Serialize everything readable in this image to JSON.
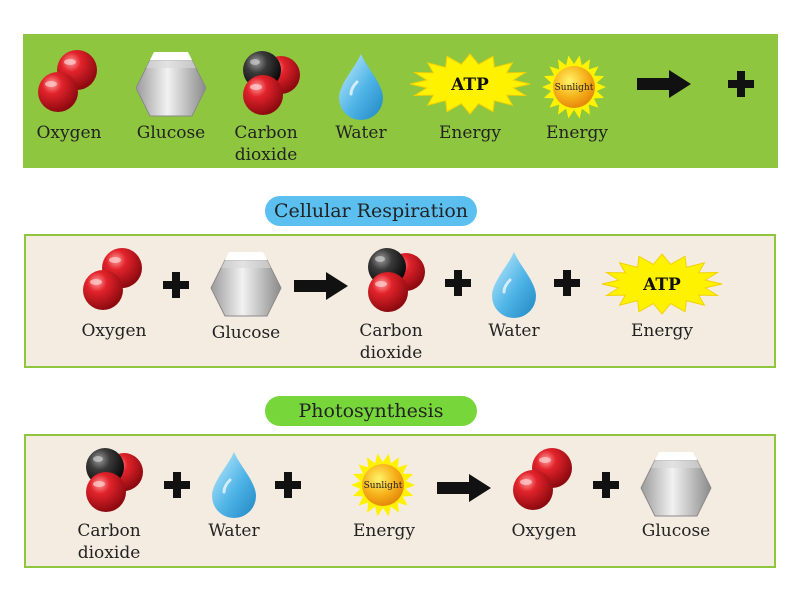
{
  "legend": {
    "items": [
      {
        "name": "oxygen",
        "label": "Oxygen"
      },
      {
        "name": "glucose",
        "label": "Glucose"
      },
      {
        "name": "co2",
        "label_line1": "Carbon",
        "label_line2": "dioxide"
      },
      {
        "name": "water",
        "label": "Water"
      },
      {
        "name": "atp",
        "badge": "ATP",
        "label": "Energy"
      },
      {
        "name": "sun",
        "badge": "Sunlight",
        "label": "Energy"
      }
    ]
  },
  "respiration": {
    "title": "Cellular Respiration",
    "oxygen": "Oxygen",
    "glucose": "Glucose",
    "co2_line1": "Carbon",
    "co2_line2": "dioxide",
    "water": "Water",
    "atp_badge": "ATP",
    "energy": "Energy"
  },
  "photosynthesis": {
    "title": "Photosynthesis",
    "co2_line1": "Carbon",
    "co2_line2": "dioxide",
    "water": "Water",
    "sun_badge": "Sunlight",
    "energy": "Energy",
    "oxygen": "Oxygen",
    "glucose": "Glucose"
  },
  "colors": {
    "legend_bg": "#8ec63f",
    "panel_bg": "#f4ece1",
    "panel_border": "#8ec63f",
    "respiration_pill": "#5bc0f0",
    "photosynthesis_pill": "#77d63a",
    "atp_star": "#fff200",
    "sun": "#f7b21b"
  }
}
